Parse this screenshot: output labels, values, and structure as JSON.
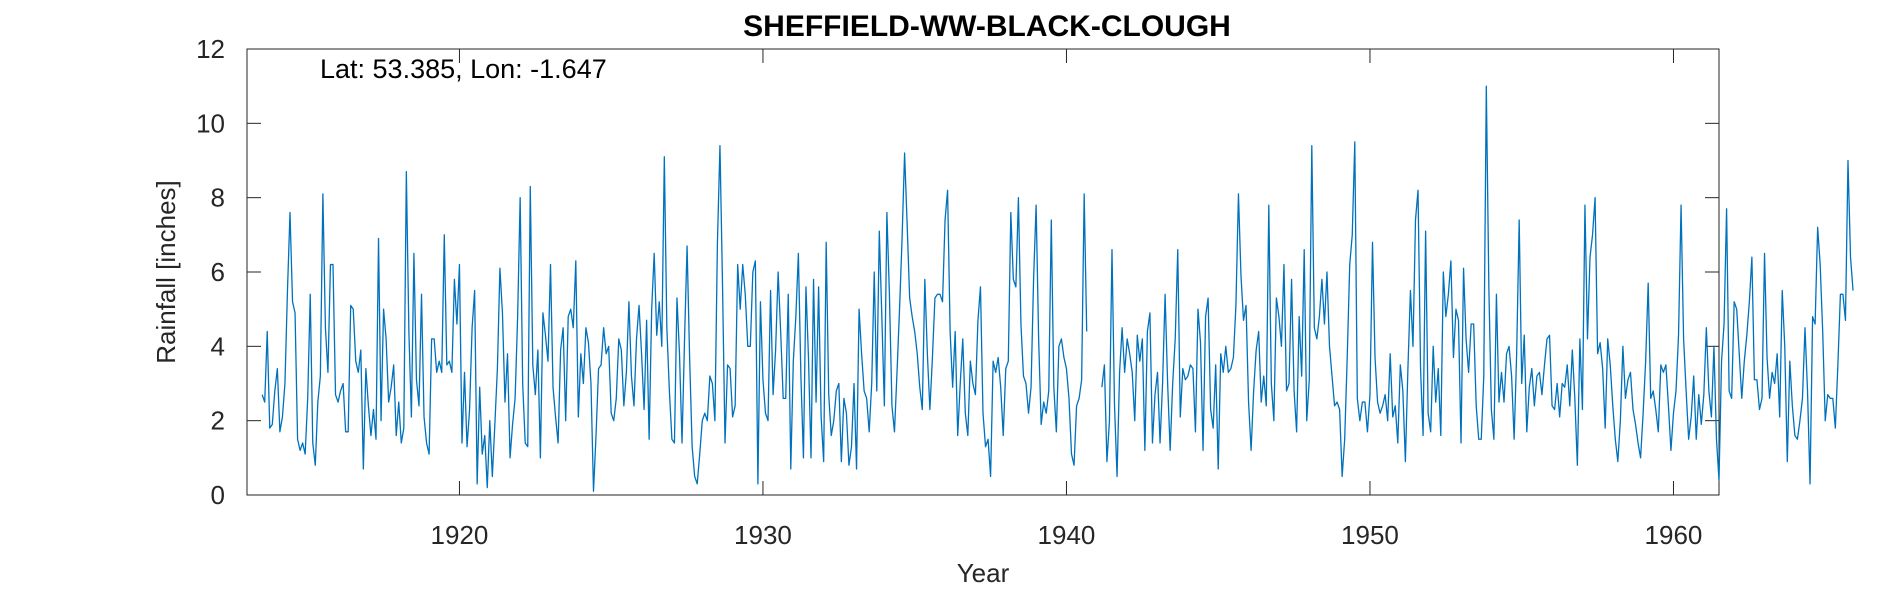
{
  "chart_data": {
    "type": "line",
    "title": "SHEFFIELD-WW-BLACK-CLOUGH",
    "xlabel": "Year",
    "ylabel": "Rainfall [inches]",
    "annotation": "Lat: 53.385, Lon: -1.647",
    "xlim": [
      1913.0,
      1961.5
    ],
    "ylim": [
      0,
      12
    ],
    "xticks": [
      1920,
      1930,
      1940,
      1950,
      1960
    ],
    "xtick_labels": [
      "1920",
      "1930",
      "1940",
      "1950",
      "1960"
    ],
    "yticks": [
      0,
      2,
      4,
      6,
      8,
      10,
      12
    ],
    "ytick_labels": [
      "0",
      "2",
      "4",
      "6",
      "8",
      "10",
      "12"
    ],
    "grid": false,
    "line_color": "#0072BD",
    "series": [
      {
        "x_start": 1913.5,
        "x_step": 0.0833333,
        "values": [
          2.7,
          2.5,
          4.4,
          1.8,
          1.9,
          2.8,
          3.4,
          1.7,
          2.1,
          3.0,
          5.5,
          7.6,
          5.2,
          4.9,
          1.5,
          1.2,
          1.4,
          1.1,
          2.6,
          5.4,
          1.4,
          0.8,
          2.5,
          3.2,
          8.1,
          4.5,
          3.3,
          6.2,
          6.2,
          2.7,
          2.5,
          2.8,
          3.0,
          1.7,
          1.7,
          5.1,
          5.0,
          3.6,
          3.3,
          3.9,
          0.7,
          3.4,
          2.4,
          1.6,
          2.3,
          1.5,
          6.9,
          2.0,
          5.0,
          4.2,
          2.5,
          2.9,
          3.5,
          1.6,
          2.5,
          1.4,
          1.8,
          8.7,
          4.4,
          2.1,
          6.5,
          3.1,
          2.4,
          5.4,
          2.1,
          1.4,
          1.1,
          4.2,
          4.2,
          3.3,
          3.6,
          3.3,
          7.0,
          3.5,
          3.6,
          3.3,
          5.8,
          4.6,
          6.2,
          1.4,
          3.3,
          1.3,
          2.3,
          4.5,
          5.5,
          0.3,
          2.9,
          1.1,
          1.6,
          0.2,
          2.0,
          0.5,
          1.9,
          3.4,
          6.1,
          4.9,
          2.5,
          3.8,
          1.0,
          1.9,
          2.6,
          4.8,
          8.0,
          3.0,
          1.4,
          1.3,
          8.3,
          3.5,
          2.7,
          3.9,
          1.0,
          4.9,
          4.3,
          3.6,
          6.2,
          2.9,
          2.1,
          1.4,
          3.9,
          4.5,
          2.0,
          4.8,
          5.0,
          4.5,
          6.3,
          2.1,
          3.8,
          3.0,
          4.5,
          4.1,
          3.0,
          0.1,
          1.6,
          3.4,
          3.5,
          4.5,
          3.8,
          4.0,
          2.2,
          2.0,
          2.6,
          4.2,
          3.9,
          2.4,
          3.3,
          5.2,
          3.2,
          2.4,
          4.2,
          5.1,
          3.8,
          2.3,
          4.7,
          1.5,
          5.0,
          6.5,
          4.3,
          5.2,
          4.0,
          9.1,
          4.5,
          2.8,
          1.5,
          1.4,
          5.3,
          3.8,
          1.4,
          4.2,
          6.7,
          3.7,
          1.3,
          0.5,
          0.3,
          1.1,
          2.0,
          2.2,
          2.0,
          3.2,
          3.0,
          2.0,
          6.8,
          9.4,
          5.7,
          1.4,
          3.5,
          3.4,
          2.1,
          2.4,
          6.2,
          5.0,
          6.2,
          5.4,
          4.0,
          4.0,
          6.0,
          6.3,
          0.3,
          5.2,
          3.1,
          2.2,
          2.0,
          5.5,
          2.7,
          3.9,
          6.0,
          4.4,
          2.6,
          2.6,
          5.4,
          0.7,
          3.6,
          4.8,
          6.5,
          3.2,
          1.0,
          5.6,
          3.7,
          1.0,
          5.8,
          2.5,
          5.6,
          2.1,
          0.9,
          6.8,
          2.7,
          1.6,
          2.0,
          2.8,
          3.0,
          0.9,
          2.6,
          2.2,
          0.8,
          1.3,
          3.0,
          0.7,
          5.0,
          3.8,
          2.8,
          2.6,
          1.7,
          3.0,
          6.0,
          2.8,
          7.1,
          4.8,
          2.4,
          7.6,
          5.4,
          2.4,
          1.7,
          3.3,
          5.0,
          6.9,
          9.2,
          7.3,
          5.3,
          4.8,
          4.4,
          3.8,
          2.9,
          2.3,
          5.8,
          3.8,
          2.3,
          3.7,
          5.3,
          5.4,
          5.4,
          5.2,
          7.4,
          8.2,
          4.4,
          2.9,
          4.4,
          1.6,
          3.0,
          4.2,
          2.2,
          1.6,
          3.6,
          3.0,
          2.7,
          4.7,
          5.6,
          2.2,
          1.3,
          1.5,
          0.5,
          3.6,
          3.3,
          3.7,
          2.9,
          1.6,
          3.4,
          3.6,
          7.6,
          5.8,
          5.6,
          8.0,
          4.6,
          3.2,
          3.0,
          2.2,
          2.9,
          5.8,
          7.8,
          4.2,
          1.9,
          2.5,
          2.2,
          2.8,
          7.4,
          2.9,
          1.7,
          4.0,
          4.2,
          3.7,
          3.4,
          2.6,
          1.1,
          0.8,
          2.4,
          2.6,
          3.1,
          8.1,
          4.4,
          null,
          null,
          null,
          null,
          null,
          2.9,
          3.5,
          0.9,
          2.0,
          6.6,
          2.4,
          0.5,
          3.3,
          4.5,
          3.3,
          4.2,
          3.8,
          3.3,
          2.0,
          4.3,
          3.6,
          4.2,
          1.2,
          4.4,
          4.9,
          1.4,
          2.7,
          3.3,
          1.4,
          3.0,
          5.4,
          3.0,
          1.2,
          3.0,
          4.2,
          6.6,
          2.1,
          3.4,
          3.1,
          3.2,
          3.5,
          3.4,
          1.7,
          5.0,
          4.1,
          1.2,
          4.8,
          5.3,
          2.3,
          1.8,
          3.5,
          0.7,
          3.8,
          3.3,
          4.0,
          3.3,
          3.4,
          3.7,
          5.1,
          8.1,
          5.9,
          4.7,
          5.1,
          2.5,
          1.2,
          2.8,
          3.9,
          4.4,
          2.5,
          3.2,
          2.4,
          7.8,
          3.0,
          2.0,
          5.3,
          4.8,
          4.0,
          6.2,
          2.8,
          3.0,
          5.8,
          2.8,
          1.7,
          4.8,
          3.2,
          6.6,
          2.0,
          3.1,
          9.4,
          4.5,
          4.2,
          4.8,
          5.8,
          4.6,
          6.0,
          4.0,
          3.2,
          2.4,
          2.5,
          2.3,
          0.5,
          1.5,
          3.7,
          6.2,
          7.0,
          9.5,
          2.6,
          2.0,
          2.5,
          2.5,
          1.7,
          2.7,
          6.8,
          3.7,
          2.5,
          2.2,
          2.4,
          2.7,
          2.0,
          3.8,
          2.1,
          2.4,
          1.4,
          3.5,
          2.8,
          0.9,
          3.4,
          5.5,
          4.0,
          7.4,
          8.2,
          3.4,
          1.6,
          7.1,
          2.2,
          1.7,
          4.0,
          2.5,
          3.4,
          1.6,
          6.0,
          4.8,
          5.4,
          6.3,
          3.7,
          5.0,
          4.7,
          1.4,
          6.1,
          4.2,
          3.3,
          4.6,
          4.6,
          2.4,
          1.5,
          1.5,
          3.2,
          11.0,
          5.6,
          2.3,
          1.5,
          5.4,
          2.5,
          3.3,
          2.5,
          3.8,
          4.0,
          3.2,
          1.5,
          3.8,
          7.4,
          3.0,
          4.3,
          1.7,
          2.9,
          3.4,
          2.4,
          3.2,
          3.3,
          2.7,
          3.5,
          4.2,
          4.3,
          2.4,
          2.3,
          3.0,
          2.1,
          3.0,
          2.9,
          3.5,
          2.4,
          3.9,
          2.6,
          0.8,
          4.2,
          2.3,
          7.8,
          4.2,
          6.4,
          7.0,
          8.0,
          3.8,
          4.1,
          3.4,
          1.8,
          4.2,
          3.5,
          2.4,
          1.5,
          0.9,
          2.0,
          4.0,
          2.6,
          3.1,
          3.3,
          2.3,
          1.9,
          1.4,
          1.0,
          2.2,
          3.6,
          5.7,
          2.6,
          2.8,
          2.3,
          1.7,
          3.5,
          3.3,
          3.5,
          2.4,
          1.2,
          2.2,
          2.8,
          4.3,
          7.8,
          4.2,
          2.8,
          1.5,
          2.1,
          3.2,
          1.5,
          2.7,
          1.9,
          2.7,
          4.5,
          2.8,
          2.1,
          4.0,
          1.5,
          0.4,
          3.6,
          4.6,
          7.7,
          2.8,
          2.6,
          5.2,
          5.0,
          3.8,
          2.6,
          3.6,
          4.3,
          5.2,
          6.4,
          3.1,
          3.1,
          2.3,
          2.6,
          6.5,
          3.7,
          2.6,
          3.3,
          3.0,
          3.8,
          2.1,
          5.5,
          4.0,
          0.9,
          3.6,
          2.4,
          1.6,
          1.5,
          2.0,
          2.6,
          4.5,
          2.8,
          0.3,
          4.8,
          4.6,
          7.2,
          6.2,
          4.4,
          2.0,
          2.7,
          2.6,
          2.6,
          1.8,
          3.5,
          5.4,
          5.4,
          4.7,
          9.0,
          6.4,
          5.5
        ]
      }
    ]
  }
}
